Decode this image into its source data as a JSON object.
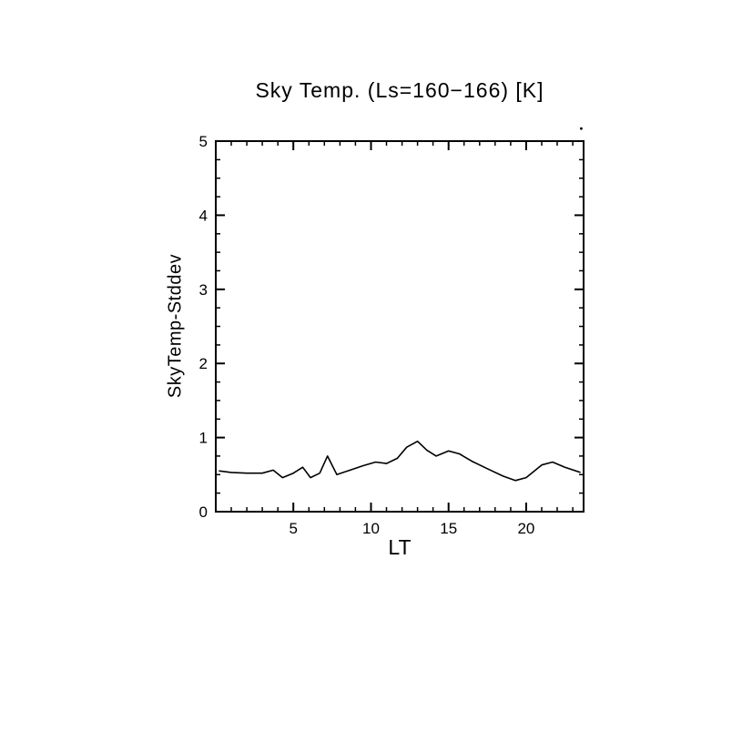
{
  "chart_data": {
    "type": "line",
    "title": "Sky Temp. (Ls=160−166) [K]",
    "xlabel": "LT",
    "ylabel": "SkyTemp-Stddev",
    "xlim": [
      0,
      23.7
    ],
    "ylim": [
      0,
      5
    ],
    "x_major_ticks": [
      5,
      10,
      15,
      20
    ],
    "y_major_ticks": [
      0,
      1,
      2,
      3,
      4,
      5
    ],
    "x_minor_step": 1,
    "y_minor_step": 0.25,
    "grid": "off",
    "legend": "none",
    "line_color": "#000000",
    "background_color": "#ffffff",
    "x": [
      0.2,
      1.0,
      2.0,
      3.0,
      3.7,
      4.3,
      5.0,
      5.6,
      6.1,
      6.7,
      7.2,
      7.8,
      8.5,
      9.5,
      10.3,
      11.0,
      11.7,
      12.3,
      13.0,
      13.6,
      14.2,
      15.0,
      15.7,
      16.5,
      17.5,
      18.5,
      19.3,
      20.0,
      21.0,
      21.7,
      22.5,
      23.5
    ],
    "y": [
      0.55,
      0.53,
      0.52,
      0.52,
      0.56,
      0.46,
      0.52,
      0.6,
      0.46,
      0.52,
      0.75,
      0.5,
      0.55,
      0.62,
      0.67,
      0.65,
      0.72,
      0.87,
      0.95,
      0.83,
      0.75,
      0.82,
      0.78,
      0.68,
      0.58,
      0.48,
      0.42,
      0.46,
      0.63,
      0.67,
      0.6,
      0.53
    ],
    "annotations": {
      "stray_dot": {
        "x": 23.55,
        "y": 5.17
      }
    }
  }
}
